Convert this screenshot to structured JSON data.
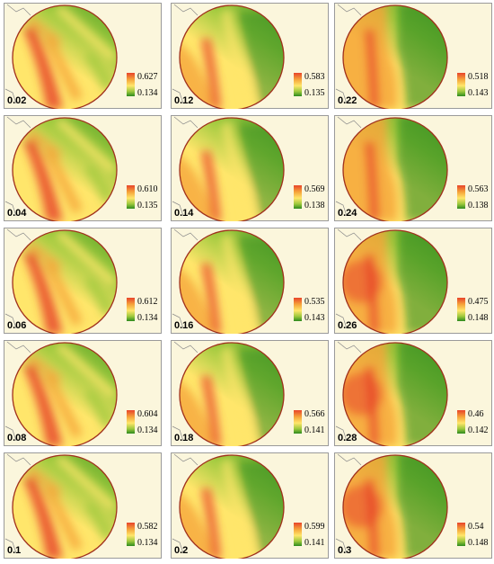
{
  "colors": {
    "high": "#e8442a",
    "mid_high": "#f5a23a",
    "mid": "#ffe66b",
    "mid_low": "#9bc83c",
    "low": "#2e8a1f",
    "background": "#fbf6dc",
    "rim": "#a0301c"
  },
  "panels": [
    {
      "label": "0.02",
      "max": "0.627",
      "min": "0.134"
    },
    {
      "label": "0.12",
      "max": "0.583",
      "min": "0.135"
    },
    {
      "label": "0.22",
      "max": "0.518",
      "min": "0.143"
    },
    {
      "label": "0.04",
      "max": "0.610",
      "min": "0.135"
    },
    {
      "label": "0.14",
      "max": "0.569",
      "min": "0.138"
    },
    {
      "label": "0.24",
      "max": "0.563",
      "min": "0.138"
    },
    {
      "label": "0.06",
      "max": "0.612",
      "min": "0.134"
    },
    {
      "label": "0.16",
      "max": "0.535",
      "min": "0.143"
    },
    {
      "label": "0.26",
      "max": "0.475",
      "min": "0.148"
    },
    {
      "label": "0.08",
      "max": "0.604",
      "min": "0.134"
    },
    {
      "label": "0.18",
      "max": "0.566",
      "min": "0.141"
    },
    {
      "label": "0.28",
      "max": "0.46",
      "min": "0.142"
    },
    {
      "label": "0.1",
      "max": "0.582",
      "min": "0.134"
    },
    {
      "label": "0.2",
      "max": "0.599",
      "min": "0.141"
    },
    {
      "label": "0.3",
      "max": "0.54",
      "min": "0.148"
    }
  ]
}
